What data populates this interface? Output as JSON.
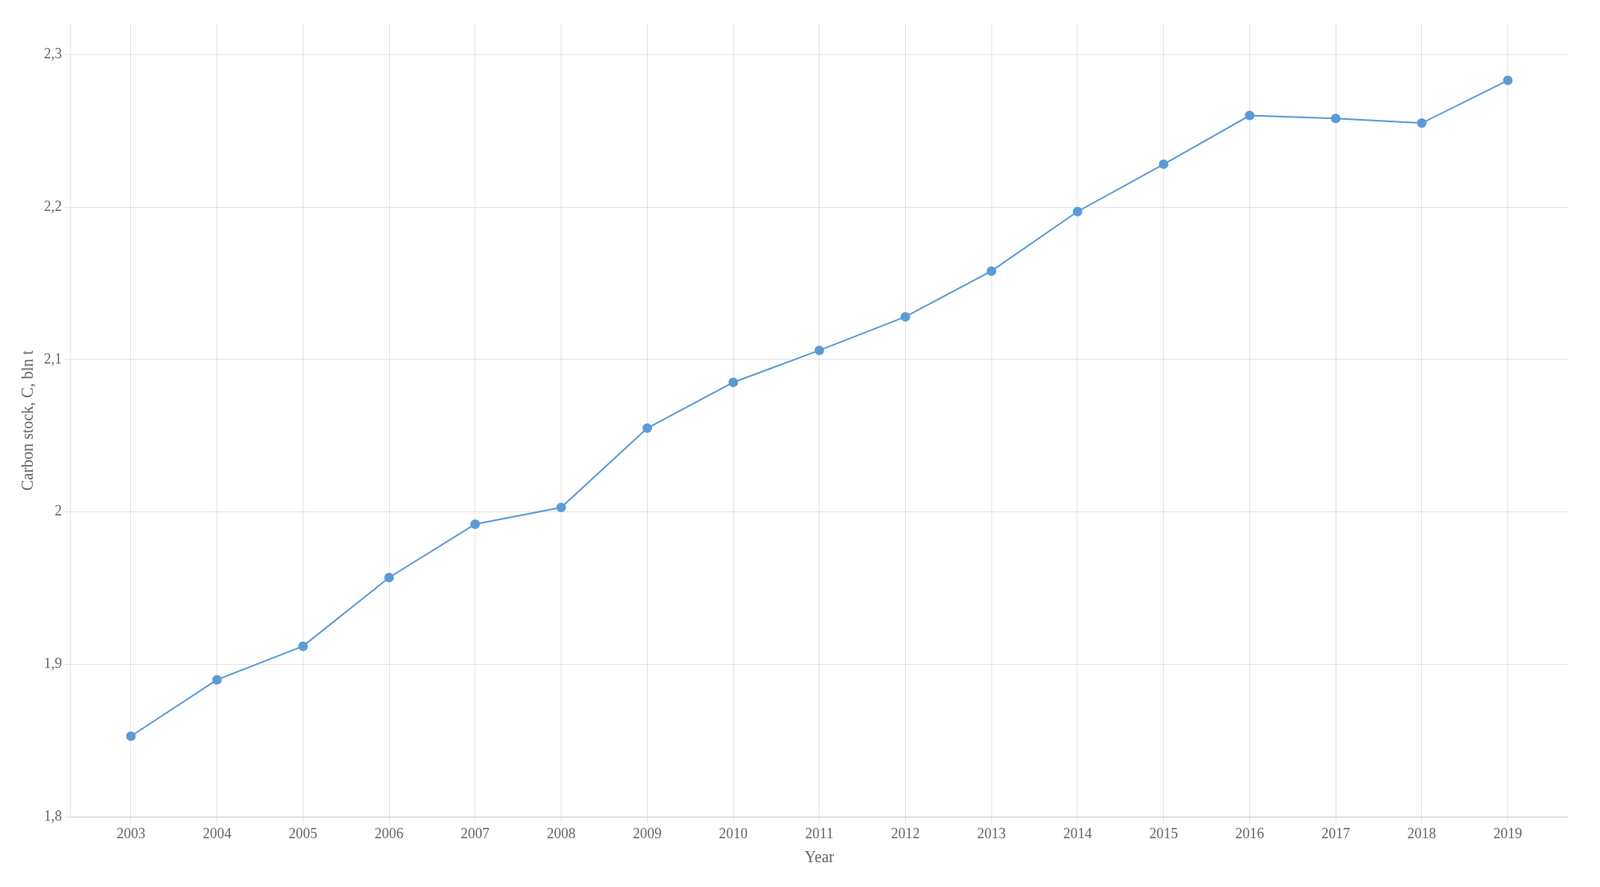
{
  "chart_data": {
    "type": "line",
    "x_label": "Year",
    "y_label": "Carbon stock, C, bln t",
    "x": [
      2003,
      2004,
      2005,
      2006,
      2007,
      2008,
      2009,
      2010,
      2011,
      2012,
      2013,
      2014,
      2015,
      2016,
      2017,
      2018,
      2019
    ],
    "values": [
      1.853,
      1.89,
      1.912,
      1.957,
      1.992,
      2.003,
      2.055,
      2.085,
      2.106,
      2.128,
      2.158,
      2.197,
      2.228,
      2.26,
      2.258,
      2.255,
      2.283
    ],
    "color": "#5B9BD5",
    "marker": "circle",
    "xlim": [
      2002.3,
      2019.7
    ],
    "xticks": [
      2003,
      2004,
      2005,
      2006,
      2007,
      2008,
      2009,
      2010,
      2011,
      2012,
      2013,
      2014,
      2015,
      2016,
      2017,
      2018,
      2019
    ],
    "ylim": [
      1.8,
      2.32
    ],
    "yticks": [
      {
        "value": 1.8,
        "label": "1,8"
      },
      {
        "value": 1.9,
        "label": "1,9"
      },
      2,
      {
        "value": 2.1,
        "label": "2,1"
      },
      {
        "value": 2.2,
        "label": "2,2"
      },
      {
        "value": 2.3,
        "label": "2,3"
      }
    ],
    "grid": true
  }
}
